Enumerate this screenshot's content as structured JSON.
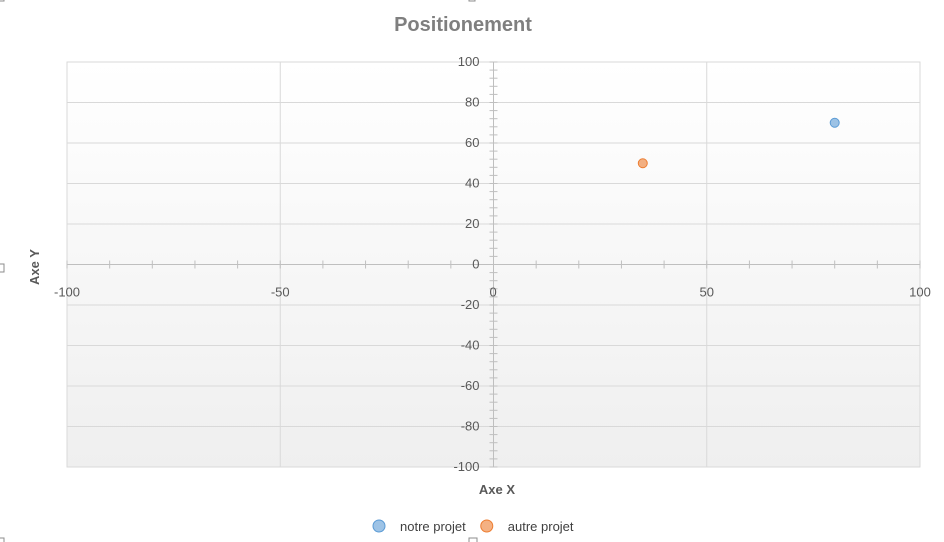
{
  "chart_data": {
    "type": "scatter",
    "title": "Positionement",
    "xlabel": "Axe X",
    "ylabel": "Axe Y",
    "xlim": [
      -100,
      100
    ],
    "ylim": [
      -100,
      100
    ],
    "xticks": [
      -100,
      -50,
      0,
      50,
      100
    ],
    "yticks": [
      -100,
      -80,
      -60,
      -40,
      -20,
      0,
      20,
      40,
      60,
      80,
      100
    ],
    "grid": true,
    "legend_position": "bottom",
    "series": [
      {
        "name": "notre projet",
        "color": "#5b9bd5",
        "points": [
          {
            "x": 80,
            "y": 70
          }
        ]
      },
      {
        "name": "autre projet",
        "color": "#ed7d31",
        "points": [
          {
            "x": 35,
            "y": 50
          }
        ]
      }
    ]
  }
}
